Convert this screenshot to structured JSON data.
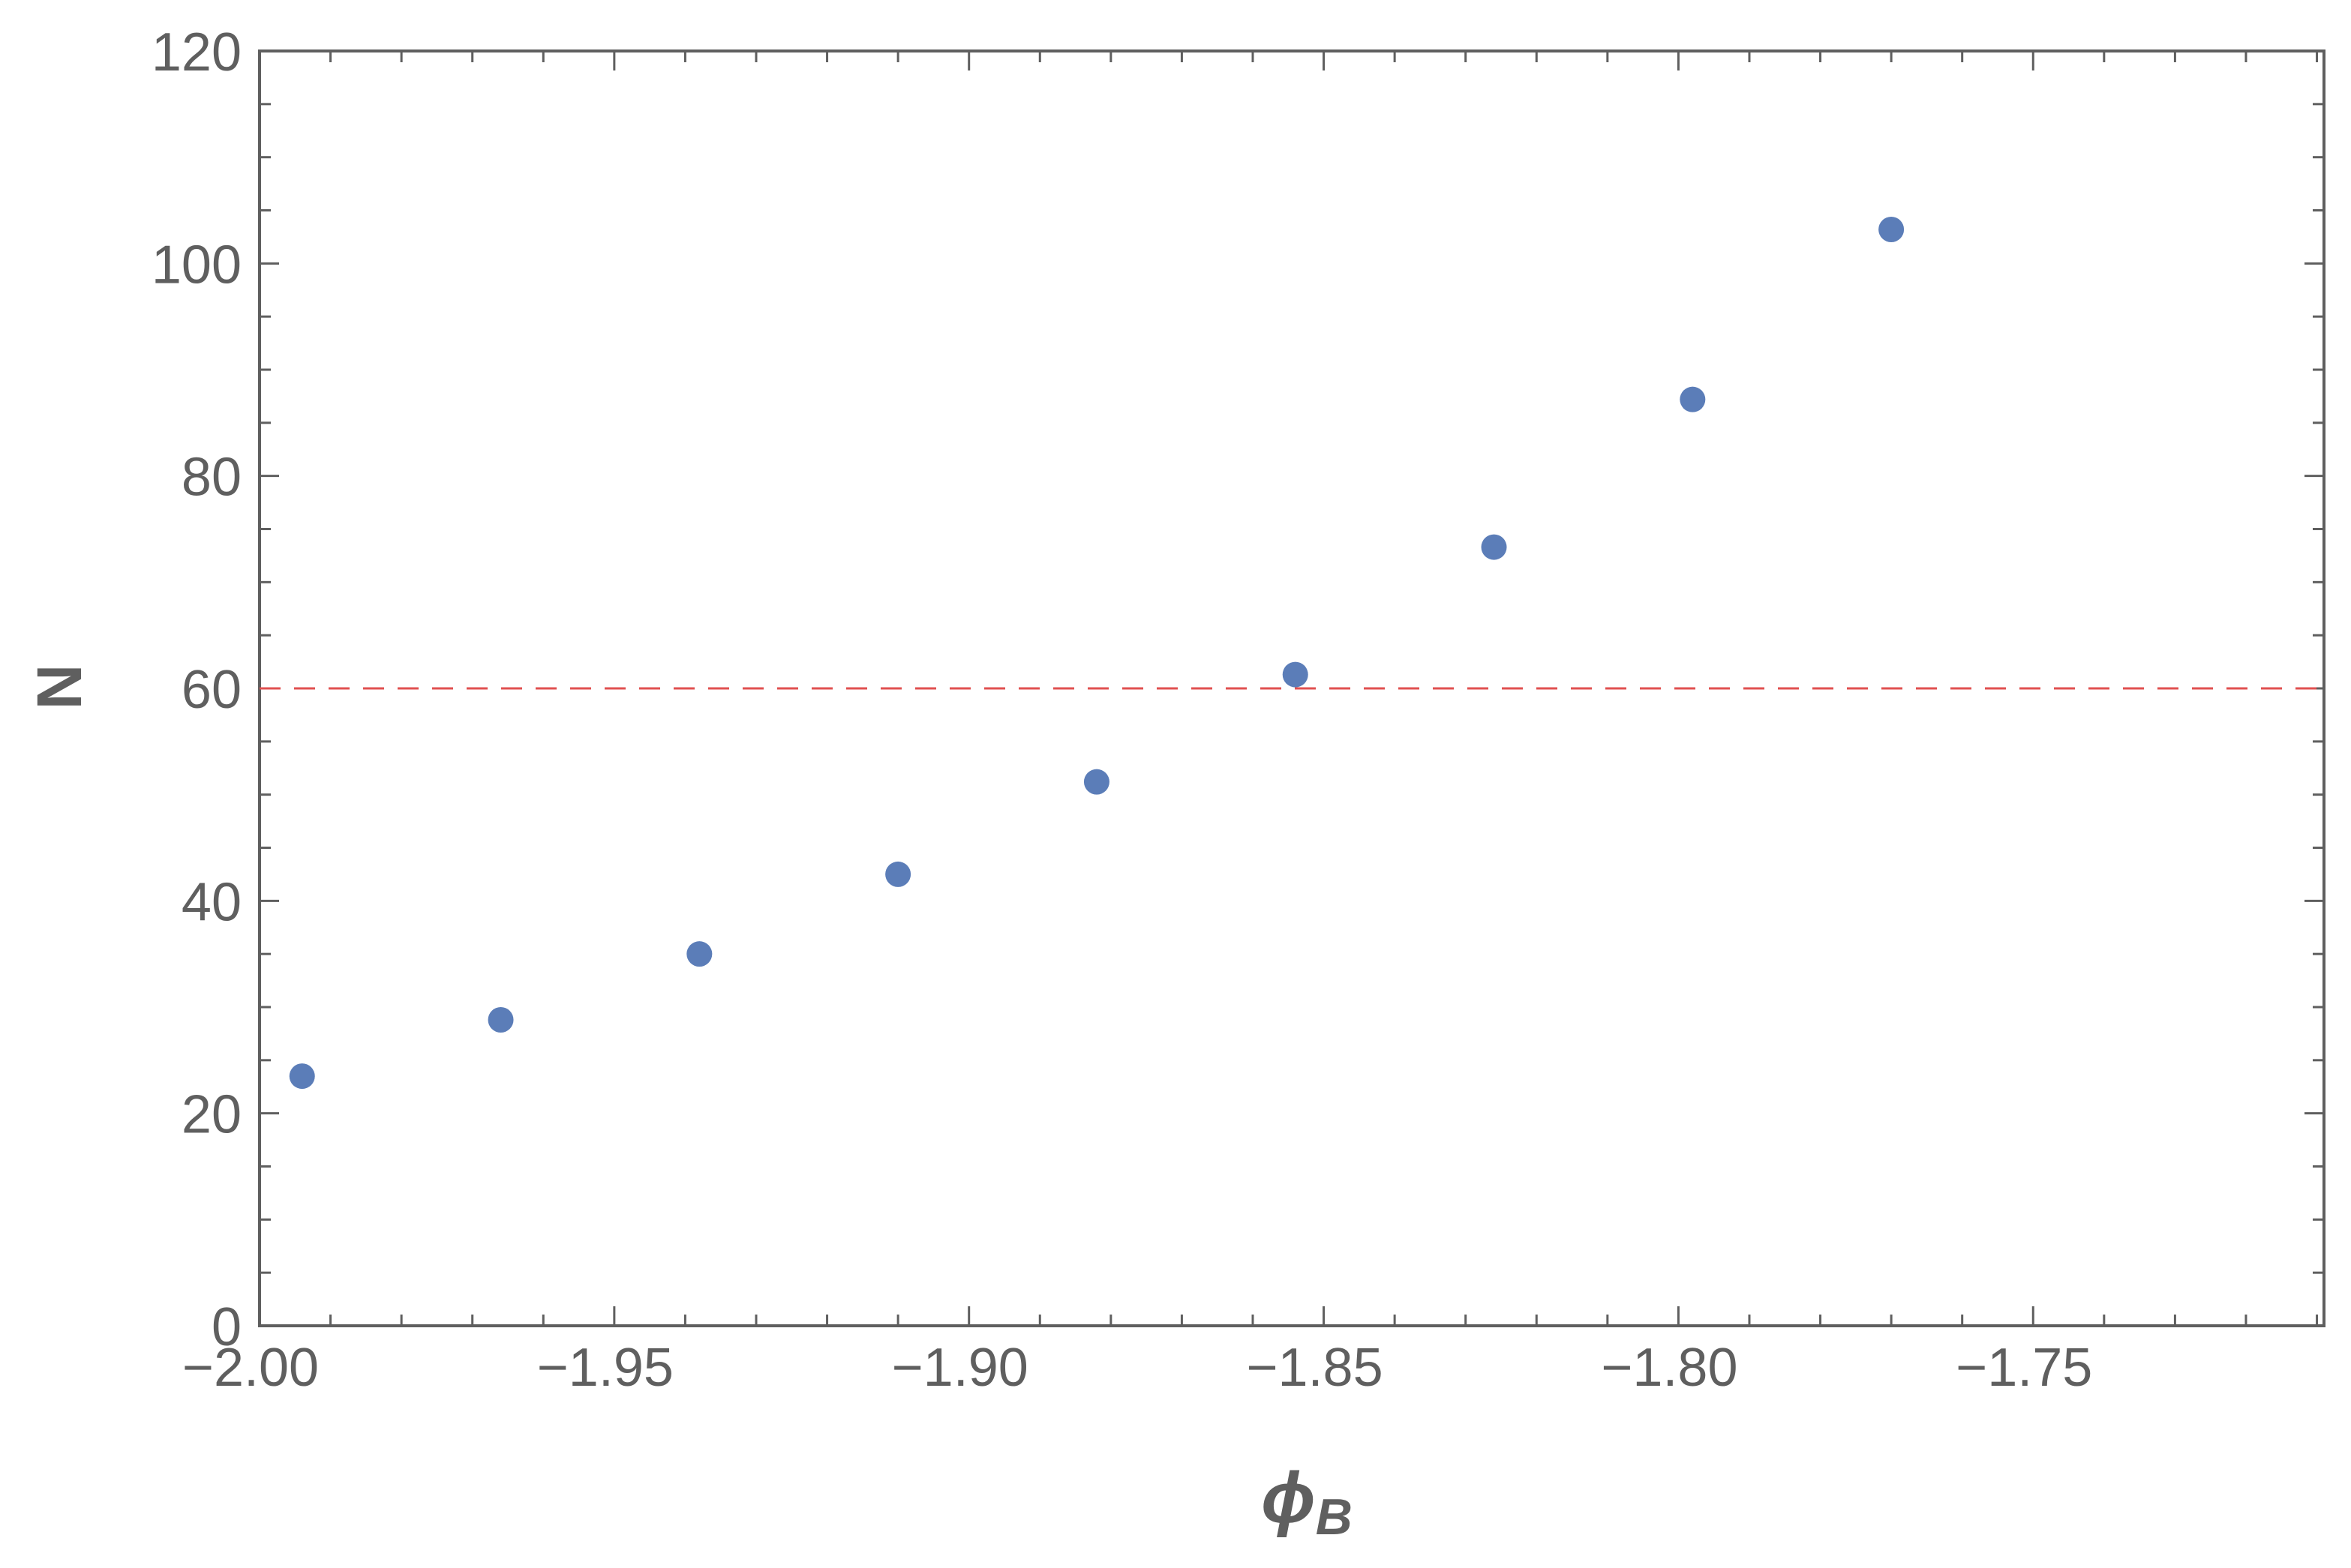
{
  "chart_data": {
    "type": "scatter",
    "title": "",
    "xlabel": "ϕ",
    "xlabel_subscript": "B",
    "ylabel": "N",
    "xlim": [
      -2.0,
      -1.709
    ],
    "ylim": [
      0,
      120
    ],
    "x_ticks": [
      -2.0,
      -1.95,
      -1.9,
      -1.85,
      -1.8,
      -1.75
    ],
    "x_tick_labels": [
      "−2.00",
      "−1.95",
      "−1.90",
      "−1.85",
      "−1.80",
      "−1.75"
    ],
    "y_ticks": [
      0,
      20,
      40,
      60,
      80,
      100,
      120
    ],
    "y_tick_labels": [
      "0",
      "20",
      "40",
      "60",
      "80",
      "100",
      "120"
    ],
    "series": [
      {
        "x": [
          -1.994,
          -1.966,
          -1.938,
          -1.91,
          -1.882,
          -1.854,
          -1.826,
          -1.798,
          -1.77
        ],
        "y": [
          23.5,
          28.8,
          35.0,
          42.5,
          51.2,
          61.3,
          73.3,
          87.2,
          103.2
        ]
      }
    ],
    "reference_line": {
      "orientation": "horizontal",
      "y": 60,
      "style": "dashed"
    },
    "grid": false,
    "legend": "none",
    "colors": {
      "points": "#5b7db8",
      "reference_line": "#e05050",
      "axes": "#5f5f5f"
    }
  }
}
